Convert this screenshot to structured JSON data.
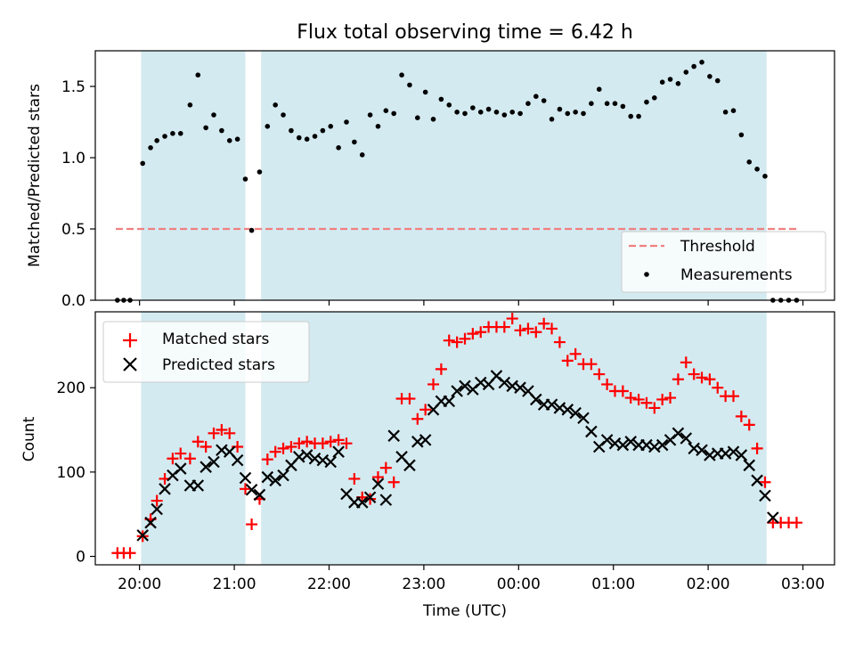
{
  "chart_data": [
    {
      "type": "scatter",
      "title": "Flux total observing time = 6.42 h",
      "xlabel": "",
      "ylabel": "Matched/Predicted stars",
      "xlim": [
        "19:32",
        "03:20"
      ],
      "ylim": [
        0,
        1.75
      ],
      "yticks": [
        0.0,
        0.5,
        1.0,
        1.5
      ],
      "ytick_labels": [
        "0.0",
        "0.5",
        "1.0",
        "1.5"
      ],
      "shaded_intervals": [
        [
          "20:01",
          "21:07"
        ],
        [
          "21:17",
          "02:37"
        ]
      ],
      "shade_color": "#d3eaf0",
      "legend": {
        "position": "lower-right",
        "entries": [
          "Threshold",
          "Measurements"
        ]
      },
      "threshold": {
        "name": "Threshold",
        "value": 0.5,
        "x_range": [
          "19:45",
          "02:57"
        ],
        "color": "#f08080"
      },
      "series": [
        {
          "name": "Measurements",
          "color": "#000000",
          "x": [
            "19:46",
            "19:50",
            "19:54",
            "20:02",
            "20:07",
            "20:11",
            "20:16",
            "20:21",
            "20:26",
            "20:32",
            "20:37",
            "20:42",
            "20:47",
            "20:52",
            "20:57",
            "21:02",
            "21:07",
            "21:11",
            "21:16",
            "21:21",
            "21:26",
            "21:31",
            "21:36",
            "21:41",
            "21:46",
            "21:51",
            "21:56",
            "22:01",
            "22:06",
            "22:11",
            "22:16",
            "22:21",
            "22:26",
            "22:31",
            "22:36",
            "22:41",
            "22:46",
            "22:51",
            "22:56",
            "23:01",
            "23:06",
            "23:11",
            "23:16",
            "23:21",
            "23:26",
            "23:31",
            "23:36",
            "23:41",
            "23:46",
            "23:51",
            "23:56",
            "00:01",
            "00:06",
            "00:11",
            "00:16",
            "00:21",
            "00:26",
            "00:31",
            "00:36",
            "00:41",
            "00:46",
            "00:51",
            "00:56",
            "01:01",
            "01:06",
            "01:11",
            "01:16",
            "01:21",
            "01:26",
            "01:31",
            "01:36",
            "01:41",
            "01:46",
            "01:51",
            "01:56",
            "02:01",
            "02:06",
            "02:11",
            "02:16",
            "02:21",
            "02:26",
            "02:31",
            "02:36",
            "02:41",
            "02:46",
            "02:51",
            "02:56"
          ],
          "y": [
            0.0,
            0.0,
            0.0,
            0.96,
            1.07,
            1.12,
            1.15,
            1.17,
            1.17,
            1.37,
            1.58,
            1.21,
            1.3,
            1.19,
            1.12,
            1.13,
            0.85,
            0.49,
            0.9,
            1.22,
            1.37,
            1.3,
            1.19,
            1.14,
            1.13,
            1.15,
            1.19,
            1.22,
            1.07,
            1.25,
            1.11,
            1.02,
            1.3,
            1.22,
            1.33,
            1.31,
            1.58,
            1.51,
            1.28,
            1.46,
            1.27,
            1.41,
            1.37,
            1.32,
            1.31,
            1.35,
            1.32,
            1.34,
            1.32,
            1.3,
            1.32,
            1.31,
            1.38,
            1.43,
            1.4,
            1.27,
            1.34,
            1.31,
            1.32,
            1.31,
            1.38,
            1.48,
            1.38,
            1.38,
            1.36,
            1.29,
            1.29,
            1.39,
            1.42,
            1.53,
            1.55,
            1.52,
            1.6,
            1.64,
            1.67,
            1.57,
            1.54,
            1.32,
            1.33,
            1.16,
            0.97,
            0.92,
            0.87,
            0.0,
            0.0,
            0.0,
            0.0
          ]
        }
      ]
    },
    {
      "type": "scatter",
      "title": "",
      "xlabel": "Time (UTC)",
      "ylabel": "Count",
      "xlim": [
        "19:32",
        "03:20"
      ],
      "ylim": [
        -10,
        290
      ],
      "yticks": [
        0,
        100,
        200
      ],
      "ytick_labels": [
        "0",
        "100",
        "200"
      ],
      "xticks": [
        "20:00",
        "21:00",
        "22:00",
        "23:00",
        "00:00",
        "01:00",
        "02:00",
        "03:00"
      ],
      "xtick_labels": [
        "20:00",
        "21:00",
        "22:00",
        "23:00",
        "00:00",
        "01:00",
        "02:00",
        "03:00"
      ],
      "shaded_intervals": [
        [
          "20:01",
          "21:07"
        ],
        [
          "21:17",
          "02:37"
        ]
      ],
      "shade_color": "#d3eaf0",
      "legend": {
        "position": "upper-left",
        "entries": [
          "Matched stars",
          "Predicted stars"
        ]
      },
      "series": [
        {
          "name": "Matched stars",
          "marker": "+",
          "color": "#ff0000",
          "x": [
            "19:46",
            "19:50",
            "19:54",
            "20:02",
            "20:07",
            "20:11",
            "20:16",
            "20:21",
            "20:26",
            "20:32",
            "20:37",
            "20:42",
            "20:47",
            "20:52",
            "20:57",
            "21:02",
            "21:07",
            "21:11",
            "21:16",
            "21:21",
            "21:26",
            "21:31",
            "21:36",
            "21:41",
            "21:46",
            "21:51",
            "21:56",
            "22:01",
            "22:06",
            "22:11",
            "22:16",
            "22:21",
            "22:26",
            "22:31",
            "22:36",
            "22:41",
            "22:46",
            "22:51",
            "22:56",
            "23:01",
            "23:06",
            "23:11",
            "23:16",
            "23:21",
            "23:26",
            "23:31",
            "23:36",
            "23:41",
            "23:46",
            "23:51",
            "23:56",
            "00:01",
            "00:06",
            "00:11",
            "00:16",
            "00:21",
            "00:26",
            "00:31",
            "00:36",
            "00:41",
            "00:46",
            "00:51",
            "00:56",
            "01:01",
            "01:06",
            "01:11",
            "01:16",
            "01:21",
            "01:26",
            "01:31",
            "01:36",
            "01:41",
            "01:46",
            "01:51",
            "01:56",
            "02:01",
            "02:06",
            "02:11",
            "02:16",
            "02:21",
            "02:26",
            "02:31",
            "02:36",
            "02:41",
            "02:46",
            "02:51",
            "02:56"
          ],
          "y": [
            4,
            4,
            4,
            24,
            44,
            66,
            92,
            116,
            122,
            116,
            136,
            130,
            146,
            150,
            146,
            130,
            80,
            38,
            68,
            115,
            124,
            128,
            130,
            134,
            136,
            134,
            134,
            136,
            138,
            134,
            92,
            70,
            68,
            94,
            105,
            88,
            187,
            187,
            163,
            174,
            204,
            222,
            256,
            254,
            258,
            264,
            266,
            272,
            272,
            272,
            282,
            268,
            270,
            266,
            276,
            270,
            254,
            232,
            240,
            228,
            228,
            216,
            204,
            196,
            196,
            188,
            186,
            182,
            176,
            186,
            188,
            210,
            230,
            216,
            212,
            210,
            200,
            190,
            190,
            166,
            156,
            128,
            88,
            40,
            40,
            40,
            40
          ]
        },
        {
          "name": "Predicted stars",
          "marker": "x",
          "color": "#000000",
          "x": [
            "20:02",
            "20:07",
            "20:11",
            "20:16",
            "20:21",
            "20:26",
            "20:32",
            "20:37",
            "20:42",
            "20:47",
            "20:52",
            "20:57",
            "21:02",
            "21:07",
            "21:11",
            "21:16",
            "21:21",
            "21:26",
            "21:31",
            "21:36",
            "21:41",
            "21:46",
            "21:51",
            "21:56",
            "22:01",
            "22:06",
            "22:11",
            "22:16",
            "22:21",
            "22:26",
            "22:31",
            "22:36",
            "22:41",
            "22:46",
            "22:51",
            "22:56",
            "23:01",
            "23:06",
            "23:11",
            "23:16",
            "23:21",
            "23:26",
            "23:31",
            "23:36",
            "23:41",
            "23:46",
            "23:51",
            "23:56",
            "00:01",
            "00:06",
            "00:11",
            "00:16",
            "00:21",
            "00:26",
            "00:31",
            "00:36",
            "00:41",
            "00:46",
            "00:51",
            "00:56",
            "01:01",
            "01:06",
            "01:11",
            "01:16",
            "01:21",
            "01:26",
            "01:31",
            "01:36",
            "01:41",
            "01:46",
            "01:51",
            "01:56",
            "02:01",
            "02:06",
            "02:11",
            "02:16",
            "02:21",
            "02:26",
            "02:31",
            "02:36",
            "02:41"
          ],
          "y": [
            25,
            40,
            56,
            80,
            96,
            104,
            84,
            84,
            106,
            112,
            126,
            124,
            114,
            93,
            79,
            73,
            94,
            90,
            96,
            108,
            118,
            120,
            116,
            114,
            112,
            124,
            74,
            64,
            64,
            70,
            86,
            67,
            143,
            118,
            108,
            136,
            138,
            174,
            184,
            184,
            196,
            202,
            198,
            206,
            204,
            214,
            206,
            202,
            200,
            196,
            186,
            180,
            180,
            176,
            174,
            170,
            164,
            148,
            130,
            138,
            134,
            132,
            136,
            132,
            132,
            130,
            132,
            138,
            146,
            140,
            128,
            126,
            120,
            122,
            122,
            124,
            120,
            108,
            90,
            72,
            46
          ]
        }
      ]
    }
  ]
}
